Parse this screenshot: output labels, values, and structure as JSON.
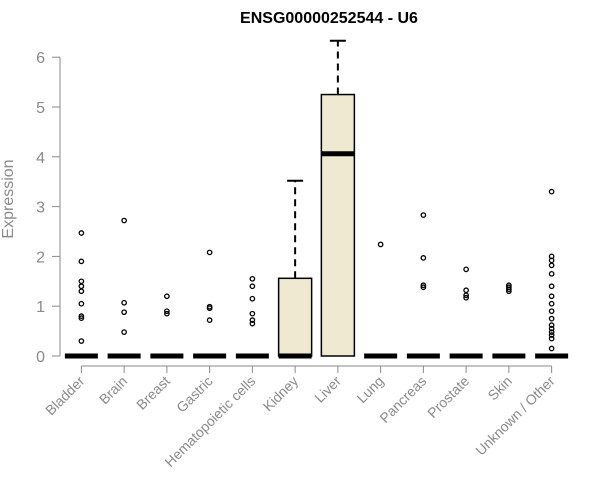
{
  "chart_data": {
    "type": "boxplot",
    "title": "ENSG00000252544 - U6",
    "xlabel": "",
    "ylabel": "Expression",
    "ylim": [
      0,
      6.3
    ],
    "yticks": [
      0,
      1,
      2,
      3,
      4,
      5,
      6
    ],
    "box_fill": "#efe9d2",
    "categories": [
      "Bladder",
      "Brain",
      "Breast",
      "Gastric",
      "Hematopoietic cells",
      "Kidney",
      "Liver",
      "Lung",
      "Pancreas",
      "Prostate",
      "Skin",
      "Unknown / Other"
    ],
    "boxes": [
      {
        "category": "Bladder",
        "q1": 0,
        "median": 0,
        "q3": 0,
        "whisker_low": 0,
        "whisker_high": 0,
        "outliers": [
          2.47,
          1.9,
          1.5,
          1.4,
          1.3,
          1.05,
          0.8,
          0.76,
          0.3
        ]
      },
      {
        "category": "Brain",
        "q1": 0,
        "median": 0,
        "q3": 0,
        "whisker_low": 0,
        "whisker_high": 0,
        "outliers": [
          2.72,
          1.07,
          0.88,
          0.48
        ]
      },
      {
        "category": "Breast",
        "q1": 0,
        "median": 0,
        "q3": 0,
        "whisker_low": 0,
        "whisker_high": 0,
        "outliers": [
          1.2,
          0.9,
          0.85
        ]
      },
      {
        "category": "Gastric",
        "q1": 0,
        "median": 0,
        "q3": 0,
        "whisker_low": 0,
        "whisker_high": 0,
        "outliers": [
          2.08,
          0.99,
          0.96,
          0.72
        ]
      },
      {
        "category": "Hematopoietic cells",
        "q1": 0,
        "median": 0,
        "q3": 0,
        "whisker_low": 0,
        "whisker_high": 0,
        "outliers": [
          1.55,
          1.4,
          1.15,
          0.85,
          0.72,
          0.65
        ]
      },
      {
        "category": "Kidney",
        "q1": 0,
        "median": 0,
        "q3": 1.56,
        "whisker_low": 0,
        "whisker_high": 3.52,
        "outliers": []
      },
      {
        "category": "Liver",
        "q1": 0,
        "median": 4.06,
        "q3": 5.25,
        "whisker_low": 0,
        "whisker_high": 6.33,
        "outliers": []
      },
      {
        "category": "Lung",
        "q1": 0,
        "median": 0,
        "q3": 0,
        "whisker_low": 0,
        "whisker_high": 0,
        "outliers": [
          2.24
        ]
      },
      {
        "category": "Pancreas",
        "q1": 0,
        "median": 0,
        "q3": 0,
        "whisker_low": 0,
        "whisker_high": 0,
        "outliers": [
          2.83,
          1.97,
          1.42,
          1.38
        ]
      },
      {
        "category": "Prostate",
        "q1": 0,
        "median": 0,
        "q3": 0,
        "whisker_low": 0,
        "whisker_high": 0,
        "outliers": [
          1.74,
          1.32,
          1.22,
          1.17
        ]
      },
      {
        "category": "Skin",
        "q1": 0,
        "median": 0,
        "q3": 0,
        "whisker_low": 0,
        "whisker_high": 0,
        "outliers": [
          1.42,
          1.38,
          1.34,
          1.3
        ]
      },
      {
        "category": "Unknown / Other",
        "q1": 0,
        "median": 0,
        "q3": 0,
        "whisker_low": 0,
        "whisker_high": 0,
        "outliers": [
          3.3,
          2.0,
          1.92,
          1.82,
          1.65,
          1.4,
          1.2,
          1.05,
          0.9,
          0.75,
          0.62,
          0.55,
          0.48,
          0.42,
          0.35,
          0.15
        ]
      }
    ]
  }
}
